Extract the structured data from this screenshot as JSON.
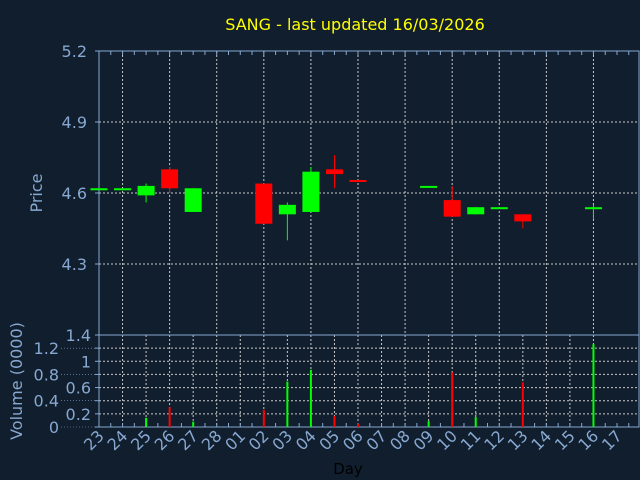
{
  "chart_data": [
    {
      "type": "candlestick",
      "title": "SANG - last updated 16/03/2026",
      "ylabel": "Price",
      "ylim": [
        4.0,
        5.2
      ],
      "yticks": [
        "5.2",
        "4.9",
        "4.6",
        "4.3"
      ],
      "ytick_values": [
        5.2,
        4.9,
        4.6,
        4.3
      ],
      "grid": true,
      "colors": {
        "up": "#00ff00",
        "down": "#ff0000",
        "title": "#ffff00",
        "axis": "#87a8d0",
        "background": "#111e2e"
      },
      "candles": [
        {
          "day": "23",
          "open": 4.62,
          "high": 4.62,
          "low": 4.62,
          "close": 4.62
        },
        {
          "day": "24",
          "open": 4.62,
          "high": 4.62,
          "low": 4.62,
          "close": 4.62
        },
        {
          "day": "25",
          "open": 4.59,
          "high": 4.64,
          "low": 4.56,
          "close": 4.63
        },
        {
          "day": "26",
          "open": 4.7,
          "high": 4.71,
          "low": 4.6,
          "close": 4.62
        },
        {
          "day": "27",
          "open": 4.52,
          "high": 4.62,
          "low": 4.52,
          "close": 4.62
        },
        {
          "day": "02",
          "open": 4.64,
          "high": 4.64,
          "low": 4.47,
          "close": 4.47
        },
        {
          "day": "03",
          "open": 4.51,
          "high": 4.56,
          "low": 4.4,
          "close": 4.55
        },
        {
          "day": "04",
          "open": 4.52,
          "high": 4.71,
          "low": 4.52,
          "close": 4.69
        },
        {
          "day": "05",
          "open": 4.7,
          "high": 4.76,
          "low": 4.62,
          "close": 4.68
        },
        {
          "day": "06",
          "open": 4.655,
          "high": 4.655,
          "low": 4.647,
          "close": 4.647
        },
        {
          "day": "09",
          "open": 4.63,
          "high": 4.63,
          "low": 4.63,
          "close": 4.63
        },
        {
          "day": "10",
          "open": 4.57,
          "high": 4.63,
          "low": 4.5,
          "close": 4.5
        },
        {
          "day": "11",
          "open": 4.51,
          "high": 4.54,
          "low": 4.51,
          "close": 4.54
        },
        {
          "day": "12",
          "open": 4.54,
          "high": 4.54,
          "low": 4.54,
          "close": 4.54
        },
        {
          "day": "13",
          "open": 4.51,
          "high": 4.51,
          "low": 4.45,
          "close": 4.48
        },
        {
          "day": "16",
          "open": 4.54,
          "high": 4.55,
          "low": 4.49,
          "close": 4.54
        }
      ]
    },
    {
      "type": "bar",
      "xlabel": "Day",
      "ylabel": "Volume (0000)",
      "ylim": [
        0,
        1.4
      ],
      "yticks": [
        "1.4",
        "1.2",
        "1",
        "0.8",
        "0.6",
        "0.4",
        "0.2",
        "0"
      ],
      "ytick_values": [
        1.4,
        1.2,
        1.0,
        0.8,
        0.6,
        0.4,
        0.2,
        0
      ],
      "categories": [
        "23",
        "24",
        "25",
        "26",
        "27",
        "28",
        "01",
        "02",
        "03",
        "04",
        "05",
        "06",
        "07",
        "08",
        "09",
        "10",
        "11",
        "12",
        "13",
        "14",
        "15",
        "16",
        "17"
      ],
      "bars": [
        {
          "day": "25",
          "value": 0.14,
          "direction": "up"
        },
        {
          "day": "26",
          "value": 0.3,
          "direction": "down"
        },
        {
          "day": "27",
          "value": 0.08,
          "direction": "up"
        },
        {
          "day": "02",
          "value": 0.26,
          "direction": "down"
        },
        {
          "day": "03",
          "value": 0.69,
          "direction": "up"
        },
        {
          "day": "04",
          "value": 0.87,
          "direction": "up"
        },
        {
          "day": "05",
          "value": 0.17,
          "direction": "down"
        },
        {
          "day": "06",
          "value": 0.05,
          "direction": "down"
        },
        {
          "day": "09",
          "value": 0.09,
          "direction": "up"
        },
        {
          "day": "10",
          "value": 0.83,
          "direction": "down"
        },
        {
          "day": "11",
          "value": 0.15,
          "direction": "up"
        },
        {
          "day": "13",
          "value": 0.68,
          "direction": "down"
        },
        {
          "day": "16",
          "value": 1.26,
          "direction": "up"
        }
      ]
    }
  ]
}
